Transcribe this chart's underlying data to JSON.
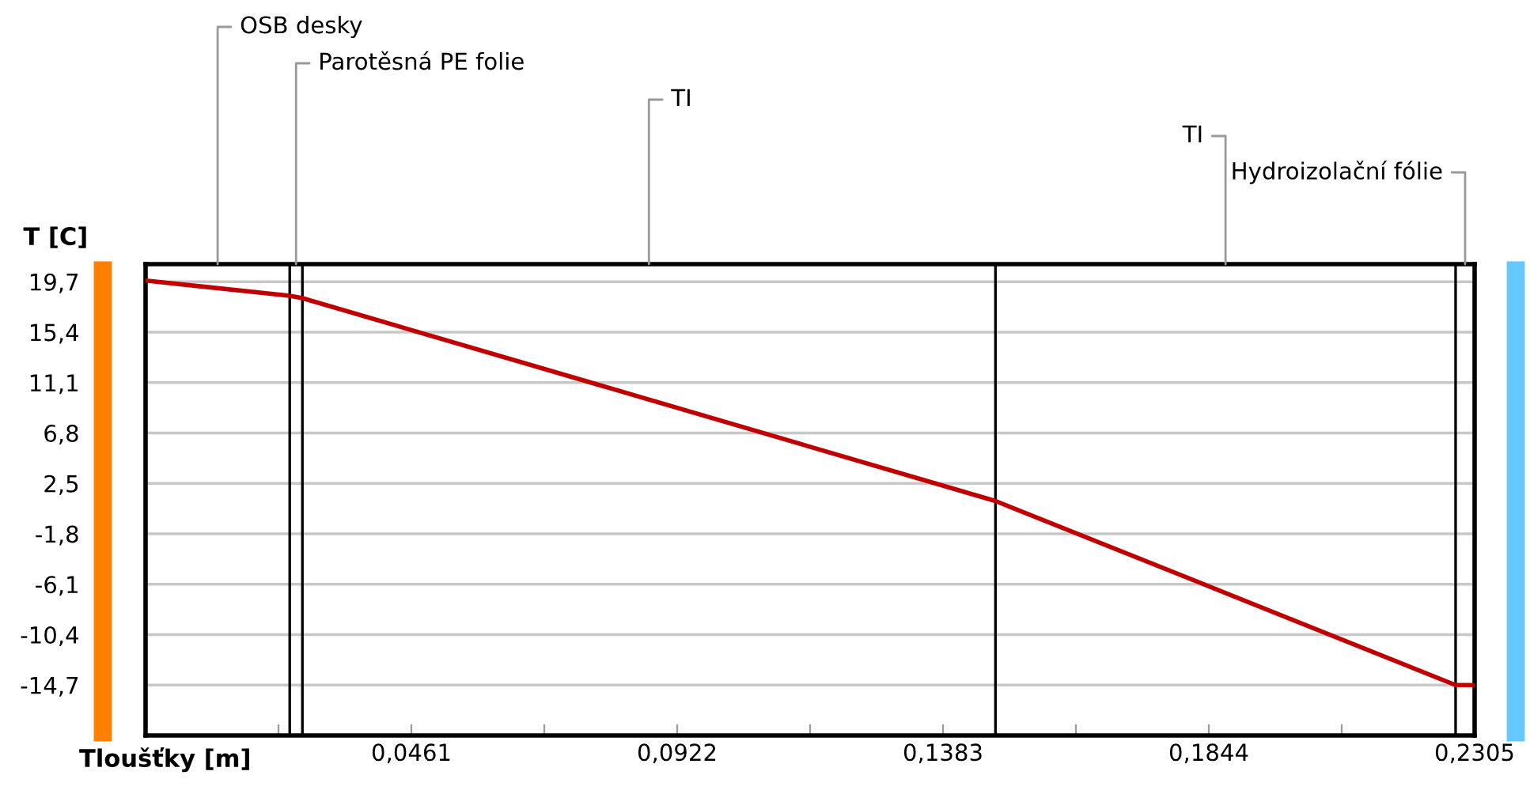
{
  "chart_data": {
    "type": "line",
    "xlabel": "Tloušťky [m]",
    "ylabel": "T [C]",
    "x": [
      0,
      0.025,
      0.0272,
      0.1474,
      0.2272,
      0.2305
    ],
    "series": [
      {
        "color": "#c00000",
        "values": [
          19.8,
          18.5,
          18.3,
          1.0,
          -14.7,
          -14.7
        ]
      }
    ],
    "xlim": [
      0,
      0.2305
    ],
    "ylim": [
      -19.0,
      21.2
    ],
    "xticks": [
      {
        "value": 0.02305,
        "label": null
      },
      {
        "value": 0.0461,
        "label": "0,0461"
      },
      {
        "value": 0.06915,
        "label": null
      },
      {
        "value": 0.0922,
        "label": "0,0922"
      },
      {
        "value": 0.11525,
        "label": null
      },
      {
        "value": 0.1383,
        "label": "0,1383"
      },
      {
        "value": 0.16135,
        "label": null
      },
      {
        "value": 0.1844,
        "label": "0,1844"
      },
      {
        "value": 0.20745,
        "label": null
      },
      {
        "value": 0.2305,
        "label": "0,2305"
      }
    ],
    "yticks": [
      {
        "value": 19.7,
        "label": "19,7"
      },
      {
        "value": 15.4,
        "label": "15,4"
      },
      {
        "value": 11.1,
        "label": "11,1"
      },
      {
        "value": 6.8,
        "label": "6,8"
      },
      {
        "value": 2.5,
        "label": "2,5"
      },
      {
        "value": -1.8,
        "label": "-1,8"
      },
      {
        "value": -6.1,
        "label": "-6,1"
      },
      {
        "value": -10.4,
        "label": "-10,4"
      },
      {
        "value": -14.7,
        "label": "-14,7"
      }
    ],
    "grid": "y",
    "ref_lines": [
      {
        "axis": "x",
        "value": 0.025,
        "color": "#000000"
      },
      {
        "axis": "x",
        "value": 0.0272,
        "color": "#000000"
      },
      {
        "axis": "x",
        "value": 0.1474,
        "color": "#000000"
      },
      {
        "axis": "x",
        "value": 0.2272,
        "color": "#000000"
      }
    ],
    "annotations": [
      "OSB desky",
      "Parotěsná PE folie",
      "TI",
      "TI",
      "Hydroizolační fólie"
    ]
  }
}
